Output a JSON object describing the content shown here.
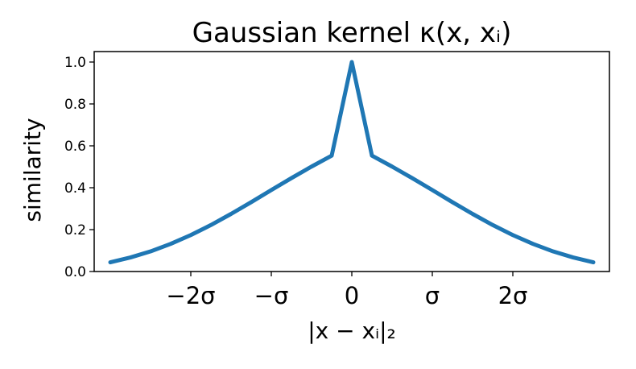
{
  "chart_data": {
    "type": "line",
    "title": "Gaussian kernel κ(x, xᵢ)",
    "xlabel": "|x − xᵢ|₂",
    "ylabel": "similarity",
    "xlim": [
      -3.2,
      3.2
    ],
    "ylim": [
      0.0,
      1.05
    ],
    "grid": false,
    "legend": "none",
    "x_ticks": [
      {
        "value": -2,
        "label": "−2σ"
      },
      {
        "value": -1,
        "label": "−σ"
      },
      {
        "value": 0,
        "label": "0"
      },
      {
        "value": 1,
        "label": "σ"
      },
      {
        "value": 2,
        "label": "2σ"
      }
    ],
    "y_ticks": [
      {
        "value": 0.0,
        "label": "0.0"
      },
      {
        "value": 0.2,
        "label": "0.2"
      },
      {
        "value": 0.4,
        "label": "0.4"
      },
      {
        "value": 0.6,
        "label": "0.6"
      },
      {
        "value": 0.8,
        "label": "0.8"
      },
      {
        "value": 1.0,
        "label": "1.0"
      }
    ],
    "series": [
      {
        "color": "#1f77b4",
        "x": [
          -3.0,
          -2.75,
          -2.5,
          -2.25,
          -2.0,
          -1.75,
          -1.5,
          -1.25,
          -1.0,
          -0.75,
          -0.5,
          -0.25,
          0.0,
          0.25,
          0.5,
          0.75,
          1.0,
          1.25,
          1.5,
          1.75,
          2.0,
          2.25,
          2.5,
          2.75,
          3.0
        ],
        "y": [
          0.044,
          0.067,
          0.096,
          0.132,
          0.174,
          0.222,
          0.275,
          0.331,
          0.389,
          0.446,
          0.501,
          0.553,
          1.0,
          0.553,
          0.501,
          0.446,
          0.389,
          0.331,
          0.275,
          0.222,
          0.174,
          0.132,
          0.096,
          0.067,
          0.044
        ]
      }
    ]
  }
}
